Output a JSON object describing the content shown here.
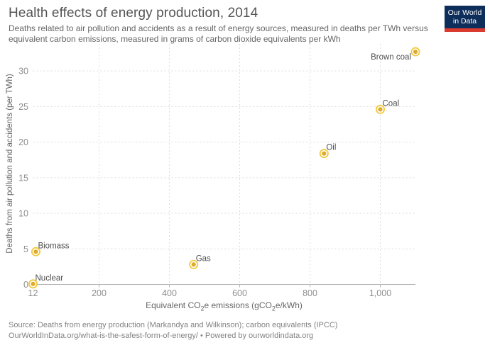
{
  "header": {
    "title": "Health effects of energy production, 2014",
    "subtitle_line1": "Deaths related to air pollution and accidents as a result of energy sources, measured in deaths per TWh versus",
    "subtitle_line2": "equivalent carbon emissions, measured in grams of carbon dioxide equivalents per kWh",
    "logo": {
      "line1": "Our World",
      "line2": "in Data",
      "bg_color": "#0d2d5a",
      "bar_color": "#d93b31"
    }
  },
  "chart_data": {
    "type": "scatter",
    "title": "Health effects of energy production, 2014",
    "xlabel": "Equivalent CO₂e emissions (gCO₂e/kWh)",
    "ylabel": "Deaths from air pollution and accidents (per TWh)",
    "xlim": [
      12,
      1100
    ],
    "ylim": [
      0,
      33.8
    ],
    "grid": "dashed",
    "legend": "none",
    "x_ticks": [
      {
        "v": 12,
        "label": "12"
      },
      {
        "v": 200,
        "label": "200"
      },
      {
        "v": 400,
        "label": "400"
      },
      {
        "v": 600,
        "label": "600"
      },
      {
        "v": 800,
        "label": "800"
      },
      {
        "v": 1000,
        "label": "1,000"
      }
    ],
    "y_ticks": [
      {
        "v": 0,
        "label": "0"
      },
      {
        "v": 5,
        "label": "5"
      },
      {
        "v": 10,
        "label": "10"
      },
      {
        "v": 15,
        "label": "15"
      },
      {
        "v": 20,
        "label": "20"
      },
      {
        "v": 25,
        "label": "25"
      },
      {
        "v": 30,
        "label": "30"
      }
    ],
    "points": [
      {
        "name": "Nuclear",
        "x": 12,
        "y": 0.07,
        "label_side": "above-right"
      },
      {
        "name": "Biomass",
        "x": 20,
        "y": 4.6,
        "label_side": "above-right"
      },
      {
        "name": "Gas",
        "x": 469,
        "y": 2.8,
        "label_side": "above-right"
      },
      {
        "name": "Oil",
        "x": 840,
        "y": 18.4,
        "label_side": "above-right"
      },
      {
        "name": "Coal",
        "x": 1000,
        "y": 24.6,
        "label_side": "above-right"
      },
      {
        "name": "Brown coal",
        "x": 1100,
        "y": 32.7,
        "label_side": "below-left"
      }
    ],
    "point_style": {
      "inner_fill": "#e0ab2d",
      "ring_stroke": "#f2c940",
      "label_color": "#4d4d4d"
    },
    "axis_style": {
      "gridline_color": "#dcdcdc",
      "axis_line_color": "#b3b3b3",
      "tick_label_color": "#8f8f8f"
    }
  },
  "footer": {
    "source_line": "Source: Deaths from energy production (Markandya and Wilkinson); carbon equivalents (IPCC)",
    "link_line": "OurWorldInData.org/what-is-the-safest-form-of-energy/ • Powered by ourworldindata.org"
  }
}
